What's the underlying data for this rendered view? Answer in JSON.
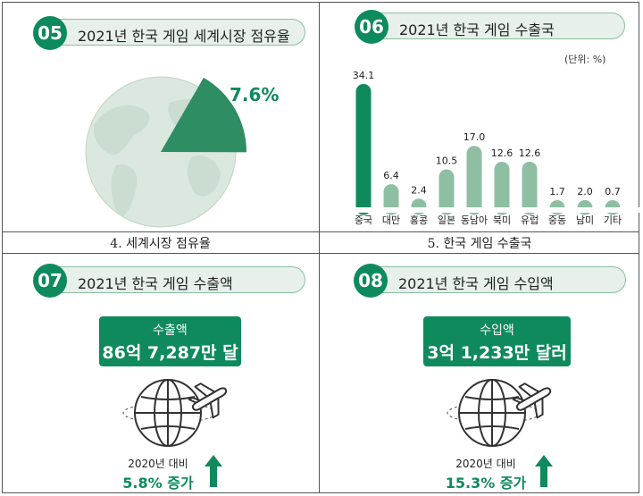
{
  "panels": {
    "p05": {
      "num": "05",
      "title": "2021년 한국 게임 세계시장 점유율",
      "share_label": "7.6%",
      "share_value": 7.6,
      "caption": "4. 세계시장 점유율"
    },
    "p06": {
      "num": "06",
      "title": "2021년 한국 게임 수출국",
      "unit": "(단위: %)",
      "caption": "5. 한국 게임 수출국"
    },
    "p07": {
      "num": "07",
      "title": "2021년 한국 게임 수출액",
      "box_label": "수출액",
      "box_value": "86억 7,287만 달러",
      "compare_label": "2020년 대비",
      "compare_value": "5.8% 증가"
    },
    "p08": {
      "num": "08",
      "title": "2021년 한국 게임 수입액",
      "box_label": "수입액",
      "box_value": "3억 1,233만 달러",
      "compare_label": "2020년 대비",
      "compare_value": "15.3% 증가"
    }
  },
  "colors": {
    "primary_green": "#0f8a5c",
    "bar_green": "#8fbfa3",
    "globe_green": "#2e8d62"
  },
  "chart_data": {
    "type": "bar",
    "categories": [
      "중국",
      "대만",
      "홍콩",
      "일본",
      "동남아",
      "북미",
      "유럽",
      "중동",
      "남미",
      "기타"
    ],
    "values": [
      34.1,
      6.4,
      2.4,
      10.5,
      17.0,
      12.6,
      12.6,
      1.7,
      2.0,
      0.7
    ],
    "value_labels": [
      "34.1",
      "6.4",
      "2.4",
      "10.5",
      "17.0",
      "12.6",
      "12.6",
      "1.7",
      "2.0",
      "0.7"
    ],
    "highlight_index": 0,
    "ylim": [
      0,
      34.1
    ]
  }
}
